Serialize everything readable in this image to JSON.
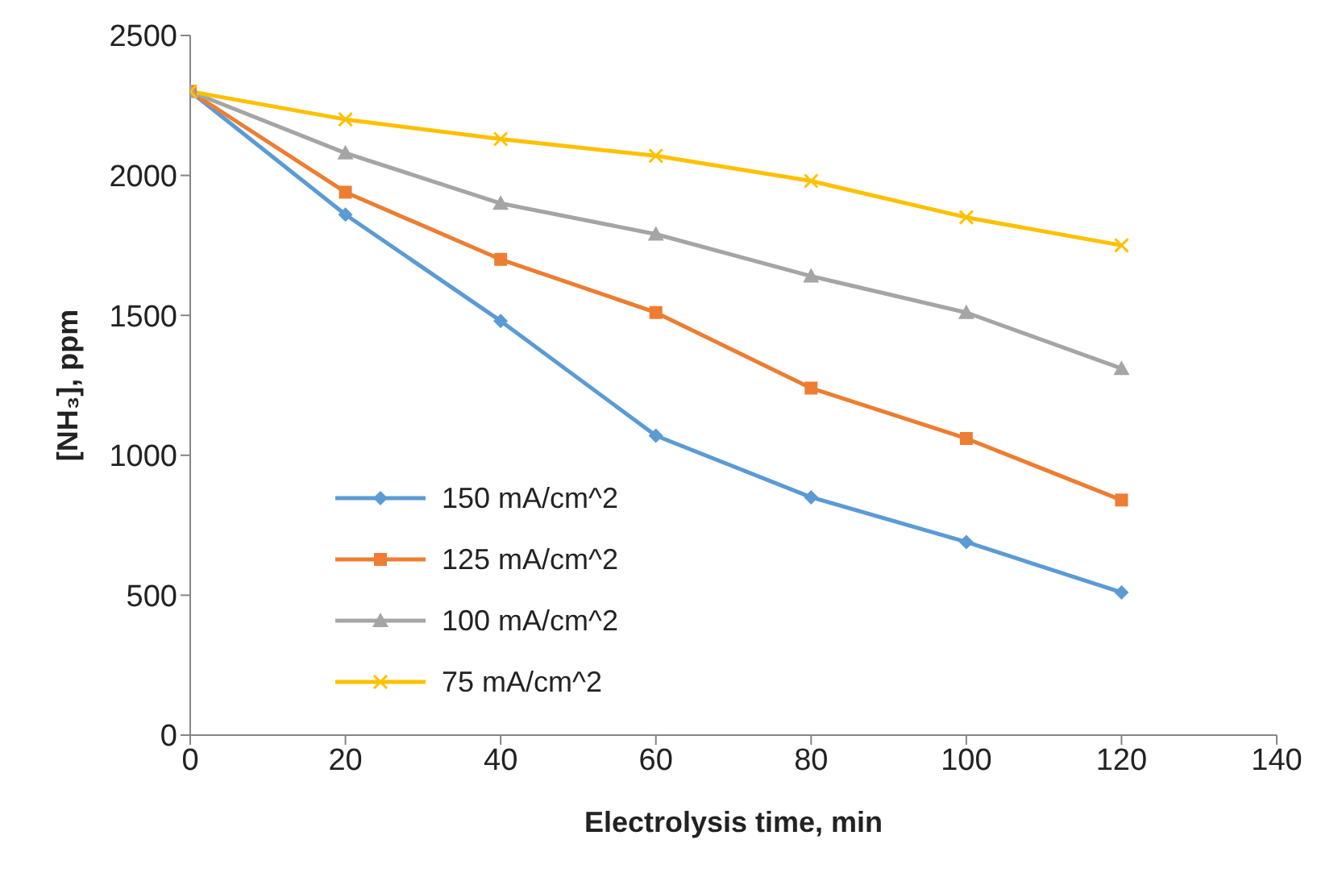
{
  "chart_data": {
    "type": "line",
    "xlabel": "Electrolysis time, min",
    "ylabel": "[NH₃], ppm",
    "x": [
      0,
      20,
      40,
      60,
      80,
      100,
      120
    ],
    "series": [
      {
        "name": "150 mA/cm^2",
        "color": "#5b9bd5",
        "marker": "diamond",
        "values": [
          2300,
          1860,
          1480,
          1070,
          850,
          690,
          510
        ]
      },
      {
        "name": "125 mA/cm^2",
        "color": "#ed7d31",
        "marker": "square",
        "values": [
          2300,
          1940,
          1700,
          1510,
          1240,
          1060,
          840
        ]
      },
      {
        "name": "100 mA/cm^2",
        "color": "#a5a5a5",
        "marker": "triangle",
        "values": [
          2300,
          2080,
          1900,
          1790,
          1640,
          1510,
          1310
        ]
      },
      {
        "name": "75 mA/cm^2",
        "color": "#ffc000",
        "marker": "cross",
        "values": [
          2300,
          2200,
          2130,
          2070,
          1980,
          1850,
          1750
        ]
      }
    ],
    "xlim": [
      0,
      140
    ],
    "xticks": [
      0,
      20,
      40,
      60,
      80,
      100,
      120,
      140
    ],
    "ylim": [
      0,
      2500
    ],
    "yticks": [
      0,
      500,
      1000,
      1500,
      2000,
      2500
    ],
    "grid": false,
    "legend": "bottom left",
    "line_style": "solid"
  }
}
